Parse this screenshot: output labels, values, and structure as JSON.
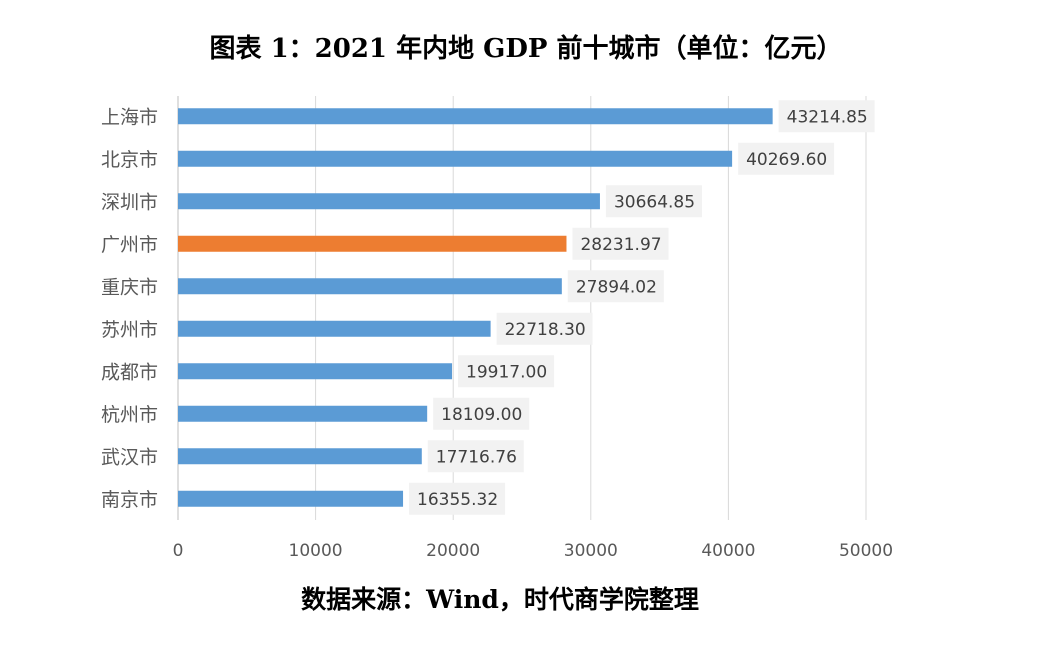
{
  "title": "图表 1：2021 年内地 GDP 前十城市（单位：亿元）",
  "source": "数据来源：Wind，时代商学院整理",
  "chart_data": {
    "type": "bar",
    "orientation": "horizontal",
    "title": "图表 1：2021 年内地 GDP 前十城市（单位：亿元）",
    "xlabel": "",
    "ylabel": "",
    "xlim": [
      0,
      50000
    ],
    "x_ticks": [
      "0",
      "10000",
      "20000",
      "30000",
      "40000",
      "50000"
    ],
    "grid": true,
    "categories": [
      "上海市",
      "北京市",
      "深圳市",
      "广州市",
      "重庆市",
      "苏州市",
      "成都市",
      "杭州市",
      "武汉市",
      "南京市"
    ],
    "values": [
      43214.85,
      40269.6,
      30664.85,
      28231.97,
      27894.02,
      22718.3,
      19917.0,
      18109.0,
      17716.76,
      16355.32
    ],
    "data_labels": [
      "43214.85",
      "40269.60",
      "30664.85",
      "28231.97",
      "27894.02",
      "22718.30",
      "19917.00",
      "18109.00",
      "17716.76",
      "16355.32"
    ],
    "highlight_index": 3,
    "colors": {
      "bar": "#5b9bd5",
      "highlight": "#ed7d31",
      "grid": "#d9d9d9",
      "label_box": "#f2f2f2"
    }
  }
}
